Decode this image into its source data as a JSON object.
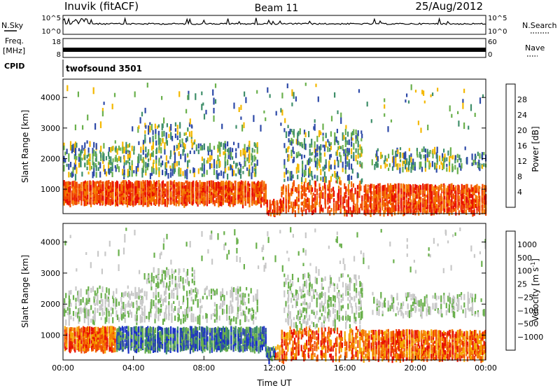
{
  "header": {
    "station": "Inuvik (fitACF)",
    "beam": "Beam 11",
    "date": "25/Aug/2012"
  },
  "side_labels": {
    "nsky": "N.Sky",
    "freq_line1": "Freq.",
    "freq_line2": "[MHz]",
    "cpid": "CPID",
    "nsearch": "N.Search",
    "nave": "Nave"
  },
  "cpid_text": "twofsound 3501",
  "colors": {
    "power": [
      "#0000ff",
      "#2e4aa8",
      "#3f8f6a",
      "#6ab04c",
      "#f4b800",
      "#f47a00",
      "#f04a00",
      "#e81000"
    ],
    "velocity": [
      "#e81000",
      "#f04a00",
      "#f47a00",
      "#f4a800",
      "#c8c8c8",
      "#6ab04c",
      "#3f8f6a",
      "#2e4aa8",
      "#1a30c8"
    ]
  },
  "chart_data": [
    {
      "type": "line",
      "name": "nsky-nsearch",
      "left_ticks": [
        "10^5",
        "10^0"
      ],
      "right_ticks": [
        "10^5",
        "10^0"
      ]
    },
    {
      "type": "line",
      "name": "freq-nave",
      "left_ticks": [
        "18",
        "8"
      ],
      "right_ticks": [
        "60",
        "0"
      ]
    },
    {
      "type": "heatmap",
      "name": "power",
      "ylabel": "Slant Range [km]",
      "y_ticks": [
        1000,
        2000,
        3000,
        4000
      ],
      "ylim": [
        200,
        4600
      ],
      "xlim": [
        0,
        24
      ],
      "colorbar_label": "Power [dB]",
      "colorbar_ticks": [
        "4",
        "8",
        "12",
        "16",
        "20",
        "24",
        "28"
      ]
    },
    {
      "type": "heatmap",
      "name": "velocity",
      "ylabel": "Slant Range [km]",
      "y_ticks": [
        1000,
        2000,
        3000,
        4000
      ],
      "ylim": [
        200,
        4600
      ],
      "xlim": [
        0,
        24
      ],
      "xlabel": "Time UT",
      "x_ticks": [
        "00:00",
        "04:00",
        "08:00",
        "12:00",
        "16:00",
        "20:00",
        "00:00"
      ],
      "colorbar_label": "Velocity [m s",
      "colorbar_label_sup": "-1",
      "colorbar_label_end": "]",
      "colorbar_ticks": [
        "1000",
        "500",
        "100",
        "25",
        "−25",
        "−100",
        "−500",
        "−1000"
      ]
    }
  ]
}
